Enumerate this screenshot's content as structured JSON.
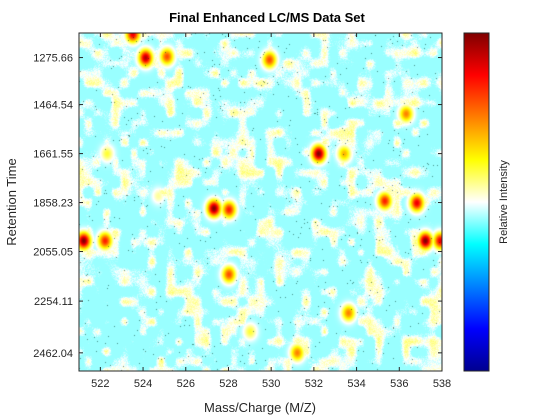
{
  "chart_data": {
    "type": "heatmap",
    "title": "Final Enhanced LC/MS Data Set",
    "xlabel": "Mass/Charge (M/Z)",
    "ylabel": "Retention Time",
    "colorbar_label": "Relative Intensity",
    "colormap": "jet",
    "xlim": [
      521,
      538
    ],
    "ylim": [
      1177,
      2535
    ],
    "y_reversed": true,
    "x_ticks": [
      "522",
      "524",
      "526",
      "528",
      "530",
      "532",
      "534",
      "536",
      "538"
    ],
    "x_tick_values": [
      522,
      524,
      526,
      528,
      530,
      532,
      534,
      536,
      538
    ],
    "y_ticks": [
      "1275.66",
      "1464.54",
      "1661.55",
      "1858.23",
      "2055.05",
      "2254.11",
      "2462.04"
    ],
    "y_tick_values": [
      1275.66,
      1464.54,
      1661.55,
      1858.23,
      2055.05,
      2254.11,
      2462.04
    ],
    "background_level": 0.45,
    "peaks": [
      {
        "mz": 521.2,
        "rt": 2010,
        "intensity": 1.0
      },
      {
        "mz": 522.2,
        "rt": 2010,
        "intensity": 0.85
      },
      {
        "mz": 523.5,
        "rt": 1180,
        "intensity": 0.9
      },
      {
        "mz": 524.1,
        "rt": 1275,
        "intensity": 0.95
      },
      {
        "mz": 525.1,
        "rt": 1270,
        "intensity": 0.8
      },
      {
        "mz": 527.3,
        "rt": 1880,
        "intensity": 1.0
      },
      {
        "mz": 528.0,
        "rt": 1885,
        "intensity": 0.85
      },
      {
        "mz": 529.9,
        "rt": 1283,
        "intensity": 0.8
      },
      {
        "mz": 532.2,
        "rt": 1660,
        "intensity": 1.0
      },
      {
        "mz": 533.4,
        "rt": 1660,
        "intensity": 0.7
      },
      {
        "mz": 535.3,
        "rt": 1850,
        "intensity": 0.85
      },
      {
        "mz": 536.8,
        "rt": 1858,
        "intensity": 0.9
      },
      {
        "mz": 537.2,
        "rt": 2010,
        "intensity": 1.0
      },
      {
        "mz": 537.9,
        "rt": 2010,
        "intensity": 0.9
      },
      {
        "mz": 536.3,
        "rt": 1500,
        "intensity": 0.75
      },
      {
        "mz": 528.0,
        "rt": 2145,
        "intensity": 0.8
      },
      {
        "mz": 533.6,
        "rt": 2300,
        "intensity": 0.75
      },
      {
        "mz": 531.2,
        "rt": 2460,
        "intensity": 0.75
      },
      {
        "mz": 529.0,
        "rt": 2375,
        "intensity": 0.6
      },
      {
        "mz": 522.3,
        "rt": 1660,
        "intensity": 0.6
      },
      {
        "mz": 524.7,
        "rt": 1830,
        "intensity": 0.55
      }
    ]
  }
}
